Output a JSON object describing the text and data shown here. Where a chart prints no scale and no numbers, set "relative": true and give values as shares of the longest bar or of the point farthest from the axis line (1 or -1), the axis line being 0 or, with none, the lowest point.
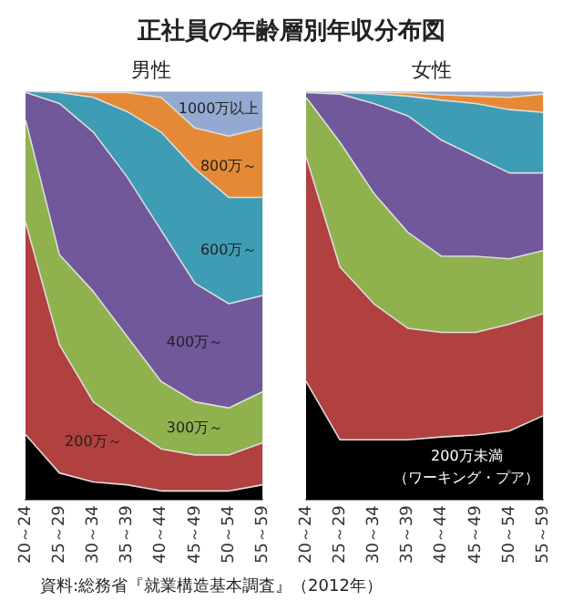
{
  "chart_data": [
    {
      "type": "other",
      "title": "正社員の年齢層別年収分布図"
    },
    {
      "type": "area",
      "title": "男性",
      "stacked": true,
      "relative": true,
      "grid": false,
      "legend": false,
      "categories": [
        "20～24",
        "25～29",
        "30～34",
        "35～39",
        "40～44",
        "45～49",
        "50～54",
        "55～59"
      ],
      "series": [
        {
          "color": "#000000",
          "values": [
            0.16,
            0.066,
            0.044,
            0.037,
            0.022,
            0.022,
            0.022,
            0.037
          ]
        },
        {
          "name": "200万～",
          "color": "#b0413e",
          "values": [
            0.52,
            0.314,
            0.196,
            0.143,
            0.103,
            0.088,
            0.088,
            0.103
          ]
        },
        {
          "name": "300万～",
          "color": "#8fb24f",
          "values": [
            0.25,
            0.22,
            0.27,
            0.22,
            0.165,
            0.13,
            0.115,
            0.125
          ]
        },
        {
          "name": "400万～",
          "color": "#71589a",
          "values": [
            0.067,
            0.37,
            0.39,
            0.39,
            0.37,
            0.29,
            0.255,
            0.235
          ]
        },
        {
          "name": "600万～",
          "color": "#3e9cb4",
          "values": [
            0.003,
            0.027,
            0.085,
            0.16,
            0.24,
            0.28,
            0.26,
            0.24
          ]
        },
        {
          "name": "800万～",
          "color": "#e48a36",
          "values": [
            0,
            0.003,
            0.012,
            0.047,
            0.085,
            0.1,
            0.15,
            0.17
          ]
        },
        {
          "name": "1000万以上",
          "color": "#93a9d2",
          "values": [
            0,
            0,
            0.003,
            0.003,
            0.015,
            0.09,
            0.11,
            0.09
          ]
        }
      ]
    },
    {
      "type": "area",
      "title": "女性",
      "stacked": true,
      "relative": true,
      "grid": false,
      "legend": false,
      "categories": [
        "20～24",
        "25～29",
        "30～34",
        "35～39",
        "40～44",
        "45～49",
        "50～54",
        "55～59"
      ],
      "series": [
        {
          "name": "200万未満（ワーキング・プア）",
          "color": "#000000",
          "values": [
            0.29,
            0.147,
            0.147,
            0.147,
            0.154,
            0.159,
            0.169,
            0.206
          ]
        },
        {
          "color": "#b0413e",
          "values": [
            0.55,
            0.423,
            0.333,
            0.273,
            0.256,
            0.251,
            0.261,
            0.25
          ]
        },
        {
          "color": "#8fb24f",
          "values": [
            0.145,
            0.305,
            0.27,
            0.235,
            0.186,
            0.186,
            0.16,
            0.154
          ]
        },
        {
          "color": "#71589a",
          "values": [
            0.012,
            0.118,
            0.22,
            0.285,
            0.284,
            0.244,
            0.21,
            0.19
          ]
        },
        {
          "color": "#3e9cb4",
          "values": [
            0.003,
            0.004,
            0.024,
            0.048,
            0.098,
            0.13,
            0.155,
            0.148
          ]
        },
        {
          "color": "#e48a36",
          "values": [
            0,
            0.003,
            0.003,
            0.008,
            0.013,
            0.018,
            0.03,
            0.045
          ]
        },
        {
          "color": "#93a9d2",
          "values": [
            0,
            0,
            0.003,
            0.004,
            0.009,
            0.012,
            0.015,
            0.007
          ]
        }
      ]
    },
    {
      "type": "other",
      "annotations": [
        "資料:総務省『就業構造基本調査』（2012年）"
      ]
    }
  ]
}
